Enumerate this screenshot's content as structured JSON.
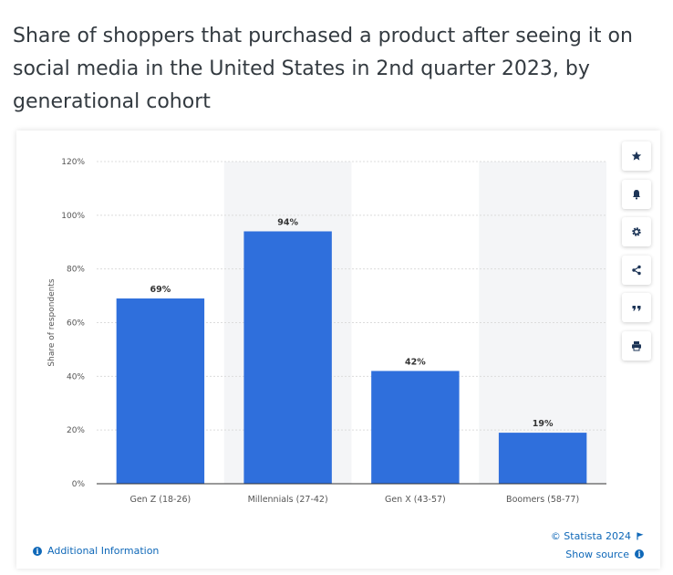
{
  "title": "Share of shoppers that purchased a product after seeing it on social media in the United States in 2nd quarter 2023, by generational cohort",
  "toolbar": {
    "items": [
      {
        "icon": "star-icon"
      },
      {
        "icon": "bell-icon"
      },
      {
        "icon": "gear-icon"
      },
      {
        "icon": "share-icon"
      },
      {
        "icon": "quote-icon"
      },
      {
        "icon": "print-icon"
      }
    ]
  },
  "footer": {
    "additional_info": "Additional Information",
    "copyright": "© Statista 2024",
    "show_source": "Show source"
  },
  "chart_data": {
    "type": "bar",
    "categories": [
      "Gen Z (18-26)",
      "Millennials (27-42)",
      "Gen X (43-57)",
      "Boomers (58-77)"
    ],
    "values": [
      69,
      94,
      42,
      19
    ],
    "data_labels": [
      "69%",
      "94%",
      "42%",
      "19%"
    ],
    "ylabel": "Share of respondents",
    "ylim": [
      0,
      120
    ],
    "yticks": [
      0,
      20,
      40,
      60,
      80,
      100,
      120
    ],
    "ytick_labels": [
      "0%",
      "20%",
      "40%",
      "60%",
      "80%",
      "100%",
      "120%"
    ],
    "grid": true,
    "colors": {
      "bar": "#2f6fdc",
      "band": "#f4f5f7",
      "grid": "#dcdcdc",
      "axis": "#333333",
      "text": "#555555"
    }
  }
}
